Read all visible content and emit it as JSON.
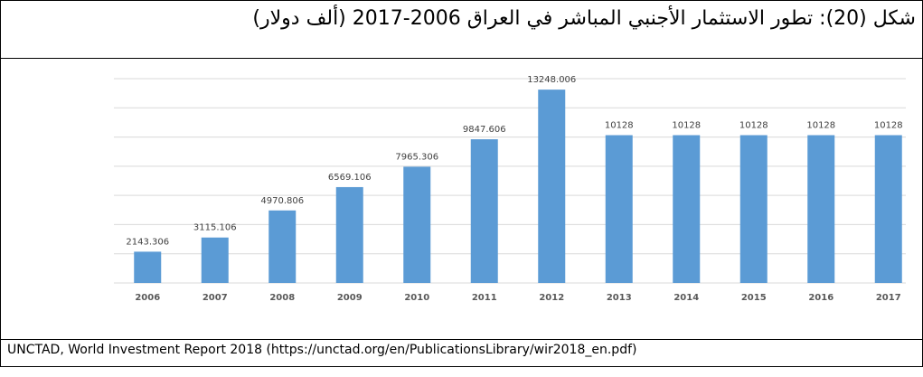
{
  "title": "شكل (20): تطور الاستثمار الأجنبي المباشر في العراق 2006-2017 (ألف دولار)",
  "source": "UNCTAD, World Investment Report 2018 (https://unctad.org/en/PublicationsLibrary/wir2018_en.pdf)",
  "chart_data": {
    "type": "bar",
    "categories": [
      "2006",
      "2007",
      "2008",
      "2009",
      "2010",
      "2011",
      "2012",
      "2013",
      "2014",
      "2015",
      "2016",
      "2017"
    ],
    "values": [
      2143.306,
      3115.106,
      4970.806,
      6569.106,
      7965.306,
      9847.606,
      13248.006,
      10128,
      10128,
      10128,
      10128,
      10128
    ],
    "value_labels": [
      "2143.306",
      "3115.106",
      "4970.806",
      "6569.106",
      "7965.306",
      "9847.606",
      "13248.006",
      "10128",
      "10128",
      "10128",
      "10128",
      "10128"
    ],
    "color": "#5b9bd5",
    "ylim": [
      0,
      14000
    ],
    "yticks": [
      0,
      2000,
      4000,
      6000,
      8000,
      10000,
      12000,
      14000
    ],
    "grid": true
  }
}
